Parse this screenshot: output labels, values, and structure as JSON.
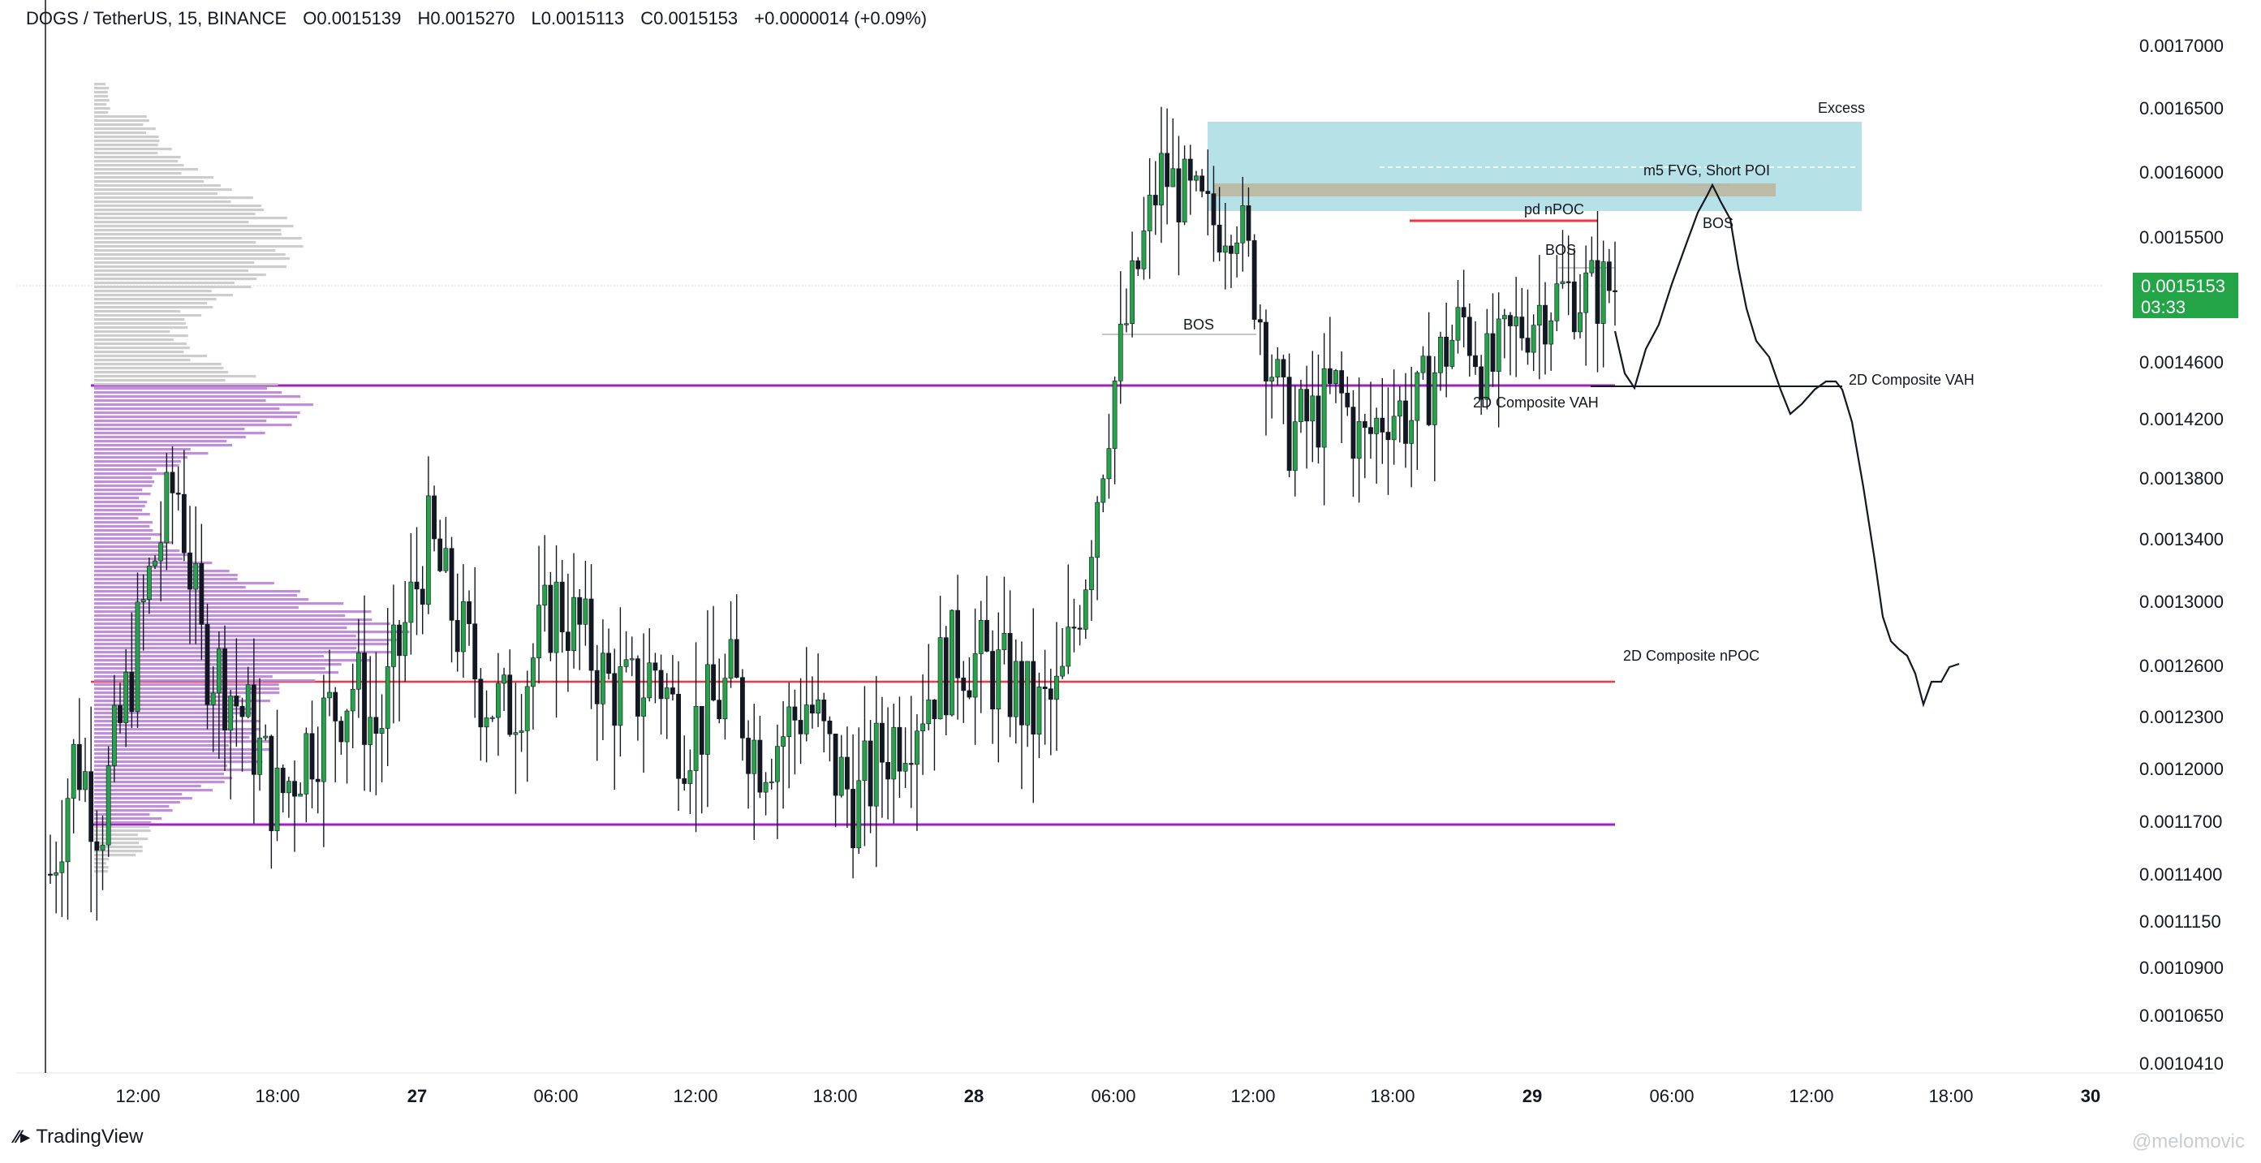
{
  "header": {
    "symbol": "DOGS / TetherUS, 15, BINANCE",
    "open": "O0.0015139",
    "high": "H0.0015270",
    "low": "L0.0015113",
    "close": "C0.0015153",
    "change": "+0.0000014 (+0.09%)"
  },
  "price_badge": {
    "price": "0.0015153",
    "countdown": "03:33"
  },
  "brand": {
    "name": "TradingView"
  },
  "watermark": "@melomovic",
  "colors": {
    "up": "#22a447",
    "down": "#131722",
    "zone": "#b2e0e6",
    "vah_line": "#a020c0",
    "npoc_line": "#f23645",
    "profile_value_area": "#b982d6",
    "profile_outside": "#c8c8c8"
  },
  "chart_data": {
    "type": "candlestick",
    "y_ticks": [
      "0.0017000",
      "0.0016500",
      "0.0016000",
      "0.0015500",
      "0.0014600",
      "0.0014200",
      "0.0013800",
      "0.0013400",
      "0.0013000",
      "0.0012600",
      "0.0012300",
      "0.0012000",
      "0.0011700",
      "0.0011400",
      "0.0011150",
      "0.0010900",
      "0.0010650",
      "0.0010410"
    ],
    "x_ticks": [
      "12:00",
      "18:00",
      "27",
      "06:00",
      "12:00",
      "18:00",
      "28",
      "06:00",
      "12:00",
      "18:00",
      "29",
      "06:00",
      "12:00",
      "18:00",
      "30"
    ],
    "x_ticks_bold": [
      "27",
      "28",
      "29",
      "30"
    ],
    "close_path": [
      0.00114,
      0.00121,
      0.00117,
      0.00124,
      0.00132,
      0.00138,
      0.00127,
      0.00125,
      0.00122,
      0.00118,
      0.00121,
      0.00123,
      0.00125,
      0.00122,
      0.00128,
      0.00134,
      0.00129,
      0.00125,
      0.00123,
      0.00126,
      0.0013,
      0.00128,
      0.00125,
      0.00124,
      0.00126,
      0.00122,
      0.00123,
      0.00125,
      0.00121,
      0.00122,
      0.00124,
      0.0012,
      0.00118,
      0.00121,
      0.00123,
      0.00125,
      0.00127,
      0.00126,
      0.00125,
      0.00123,
      0.00124,
      0.00132,
      0.00143,
      0.00152,
      0.0016,
      0.00158,
      0.00156,
      0.00157,
      0.00149,
      0.00141,
      0.00142,
      0.00144,
      0.0014,
      0.00143,
      0.00142,
      0.00146,
      0.00149,
      0.00145,
      0.00148,
      0.0015,
      0.00151,
      0.00151,
      0.001515
    ],
    "annotations": [
      {
        "label": "Excess"
      },
      {
        "label": "m5 FVG, Short POI"
      },
      {
        "label": "pd nPOC"
      },
      {
        "label": "BOS"
      },
      {
        "label": "BOS"
      },
      {
        "label": "BOS"
      },
      {
        "label": "2D Composite VAH"
      },
      {
        "label": "2D Composite VAH"
      },
      {
        "label": "2D Composite nPOC"
      }
    ]
  }
}
